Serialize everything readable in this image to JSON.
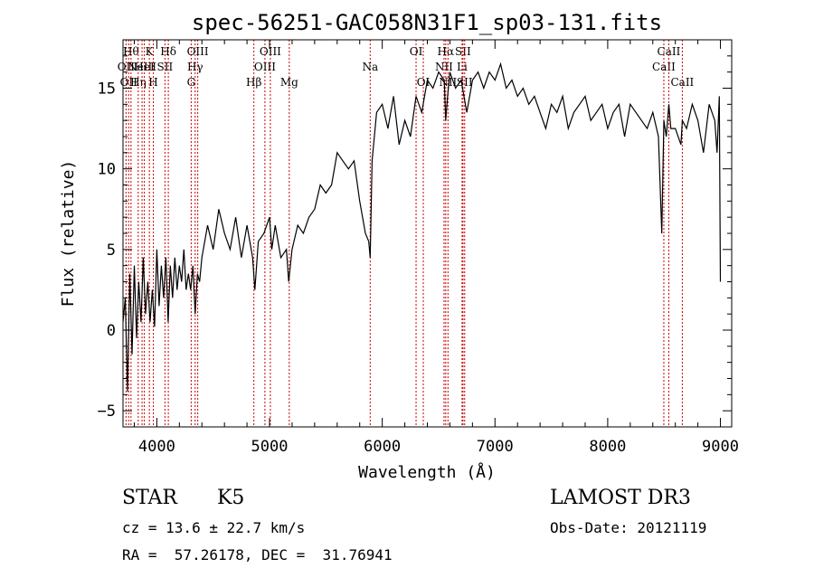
{
  "chart_data": {
    "type": "line",
    "title": "spec-56251-GAC058N31F1_sp03-131.fits",
    "xlabel": "Wavelength (Å)",
    "ylabel": "Flux (relative)",
    "xlim": [
      3700,
      9100
    ],
    "ylim": [
      -6,
      18
    ],
    "xticks": [
      4000,
      5000,
      6000,
      7000,
      8000,
      9000
    ],
    "yticks": [
      -5,
      0,
      5,
      10,
      15
    ],
    "grid": false,
    "series": [
      {
        "x": [
          3700,
          3720,
          3740,
          3760,
          3780,
          3800,
          3820,
          3840,
          3860,
          3880,
          3900,
          3920,
          3940,
          3960,
          3980,
          4000,
          4020,
          4040,
          4060,
          4080,
          4100,
          4120,
          4140,
          4160,
          4180,
          4200,
          4220,
          4240,
          4260,
          4280,
          4300,
          4320,
          4340,
          4360,
          4380,
          4400,
          4450,
          4500,
          4550,
          4600,
          4650,
          4700,
          4750,
          4800,
          4850,
          4870,
          4900,
          4950,
          5000,
          5020,
          5050,
          5100,
          5150,
          5170,
          5200,
          5250,
          5300,
          5350,
          5400,
          5450,
          5500,
          5550,
          5600,
          5650,
          5700,
          5750,
          5800,
          5850,
          5880,
          5893,
          5910,
          5930,
          5950,
          6000,
          6050,
          6100,
          6150,
          6200,
          6250,
          6300,
          6350,
          6400,
          6450,
          6500,
          6550,
          6563,
          6580,
          6600,
          6650,
          6700,
          6750,
          6800,
          6850,
          6900,
          6950,
          7000,
          7050,
          7100,
          7150,
          7200,
          7250,
          7300,
          7350,
          7400,
          7450,
          7500,
          7550,
          7600,
          7650,
          7700,
          7750,
          7800,
          7850,
          7900,
          7950,
          8000,
          8050,
          8100,
          8150,
          8200,
          8250,
          8300,
          8350,
          8400,
          8450,
          8480,
          8498,
          8520,
          8542,
          8560,
          8600,
          8650,
          8662,
          8700,
          8750,
          8800,
          8850,
          8900,
          8950,
          8970,
          8990,
          9000
        ],
        "values": [
          0.5,
          2.0,
          -3.8,
          3.5,
          -1.5,
          4.0,
          -0.5,
          3.0,
          0.5,
          4.5,
          1.0,
          3.0,
          0.5,
          2.5,
          0.2,
          5.0,
          1.5,
          4.0,
          2.0,
          4.5,
          0.5,
          4.0,
          2.0,
          4.5,
          2.5,
          4.0,
          3.0,
          5.0,
          2.5,
          3.5,
          2.5,
          4.0,
          1.0,
          3.5,
          3.0,
          4.5,
          6.5,
          5.0,
          7.5,
          6.0,
          5.0,
          7.0,
          4.5,
          6.5,
          4.5,
          2.5,
          5.5,
          6.0,
          7.0,
          5.0,
          6.5,
          4.5,
          5.0,
          3.0,
          5.0,
          6.5,
          6.0,
          7.0,
          7.5,
          9.0,
          8.5,
          9.0,
          11.0,
          10.5,
          10.0,
          10.5,
          8.0,
          6.0,
          5.5,
          4.5,
          10.5,
          12.0,
          13.5,
          14.0,
          12.5,
          14.5,
          11.5,
          13.0,
          12.0,
          14.5,
          13.5,
          15.5,
          15.0,
          16.0,
          15.5,
          13.0,
          14.5,
          16.0,
          15.0,
          15.5,
          13.5,
          15.5,
          16.0,
          15.0,
          16.0,
          15.5,
          16.5,
          15.0,
          15.5,
          14.5,
          15.0,
          14.0,
          14.5,
          13.5,
          12.5,
          14.0,
          13.5,
          14.5,
          12.5,
          13.5,
          14.0,
          14.5,
          13.0,
          13.5,
          14.0,
          12.5,
          13.5,
          14.0,
          12.0,
          14.0,
          13.5,
          13.0,
          12.5,
          13.5,
          12.0,
          6.0,
          13.0,
          12.0,
          14.0,
          12.5,
          12.5,
          11.5,
          13.0,
          12.5,
          14.0,
          13.0,
          11.0,
          14.0,
          13.0,
          11.0,
          14.5,
          3.0
        ]
      }
    ],
    "line_markers": [
      {
        "wl": 3727,
        "label": "OII",
        "row": 1
      },
      {
        "wl": 3750,
        "label": "OII",
        "row": 2
      },
      {
        "wl": 3771,
        "label": "Hθ",
        "row": 0
      },
      {
        "wl": 3835,
        "label": "Hη",
        "row": 2
      },
      {
        "wl": 3869,
        "label": "NeIII",
        "row": 1
      },
      {
        "wl": 3889,
        "label": "HeI",
        "row": 1
      },
      {
        "wl": 3934,
        "label": "K",
        "row": 0
      },
      {
        "wl": 3969,
        "label": "H",
        "row": 2
      },
      {
        "wl": 4072,
        "label": "SII",
        "row": 1
      },
      {
        "wl": 4102,
        "label": "Hδ",
        "row": 0
      },
      {
        "wl": 4305,
        "label": "G",
        "row": 2
      },
      {
        "wl": 4340,
        "label": "Hγ",
        "row": 1
      },
      {
        "wl": 4363,
        "label": "OIII",
        "row": 0
      },
      {
        "wl": 4861,
        "label": "Hβ",
        "row": 2
      },
      {
        "wl": 4959,
        "label": "OIII",
        "row": 1
      },
      {
        "wl": 5007,
        "label": "OIII",
        "row": 0
      },
      {
        "wl": 5175,
        "label": "Mg",
        "row": 2
      },
      {
        "wl": 5893,
        "label": "Na",
        "row": 1
      },
      {
        "wl": 6300,
        "label": "OI",
        "row": 0
      },
      {
        "wl": 6364,
        "label": "OI",
        "row": 2
      },
      {
        "wl": 6548,
        "label": "NII",
        "row": 1
      },
      {
        "wl": 6563,
        "label": "Hα",
        "row": 0
      },
      {
        "wl": 6583,
        "label": "NII",
        "row": 2
      },
      {
        "wl": 6708,
        "label": "Li",
        "row": 1
      },
      {
        "wl": 6716,
        "label": "SII",
        "row": 0
      },
      {
        "wl": 6731,
        "label": "SII",
        "row": 2
      },
      {
        "wl": 8498,
        "label": "CaII",
        "row": 1
      },
      {
        "wl": 8542,
        "label": "CaII",
        "row": 0
      },
      {
        "wl": 8662,
        "label": "CaII",
        "row": 2
      }
    ]
  },
  "footer": {
    "object_class": "STAR",
    "subclass": "K5",
    "survey": "LAMOST DR3",
    "cz": "cz = 13.6 ± 22.7 km/s",
    "obs_date": "Obs-Date: 20121119",
    "coords": "RA =  57.26178, DEC =  31.76941"
  }
}
